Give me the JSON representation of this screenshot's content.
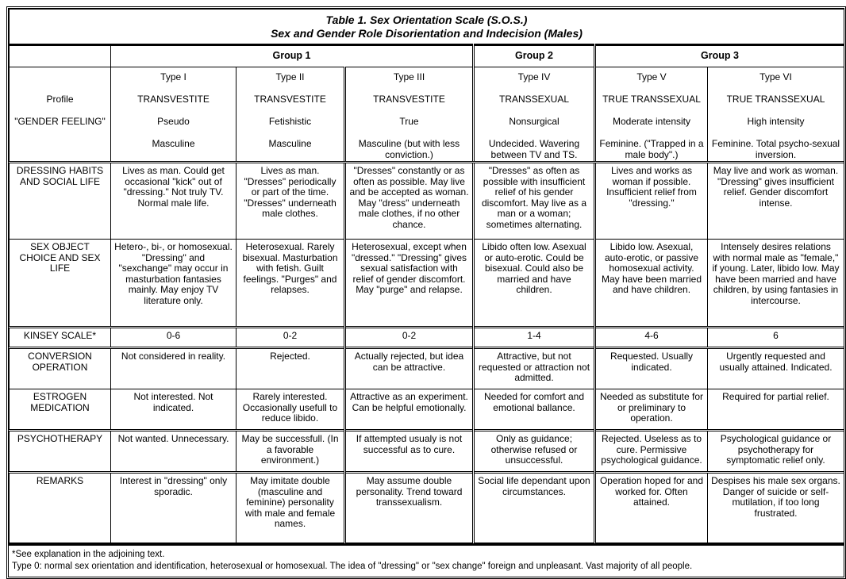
{
  "title": "Table 1. Sex Orientation Scale (S.O.S.)",
  "subtitle": "Sex and Gender Role Disorientation and Indecision (Males)",
  "groups": [
    "Group 1",
    "Group 2",
    "Group 3"
  ],
  "header_labels": [
    "Profile",
    "\"GENDER FEELING\""
  ],
  "types": [
    {
      "type": "Type I",
      "profile": "TRANSVESTITE",
      "subtype": "Pseudo",
      "gender_feeling": "Masculine"
    },
    {
      "type": "Type II",
      "profile": "TRANSVESTITE",
      "subtype": "Fetishistic",
      "gender_feeling": "Masculine"
    },
    {
      "type": "Type III",
      "profile": "TRANSVESTITE",
      "subtype": "True",
      "gender_feeling": "Masculine (but with less conviction.)"
    },
    {
      "type": "Type IV",
      "profile": "TRANSSEXUAL",
      "subtype": "Nonsurgical",
      "gender_feeling": "Undecided. Wavering between TV and TS."
    },
    {
      "type": "Type V",
      "profile": "TRUE TRANSSEXUAL",
      "subtype": "Moderate intensity",
      "gender_feeling": "Feminine. (\"Trapped in a male body\".)"
    },
    {
      "type": "Type VI",
      "profile": "TRUE TRANSSEXUAL",
      "subtype": "High intensity",
      "gender_feeling": "Feminine. Total psycho-sexual inversion."
    }
  ],
  "rows": [
    {
      "label": "DRESSING HABITS AND SOCIAL LIFE",
      "cells": [
        "Lives as man. Could get occasional \"kick\" out of \"dressing.\" Not truly TV. Normal male life.",
        "Lives as man. \"Dresses\" periodically or part of the time. \"Dresses\" underneath male clothes.",
        "\"Dresses\" constantly or as often as possible. May live and be accepted as woman. May \"dress\" underneath male clothes, if no other chance.",
        "\"Dresses\" as often as possible with insufficient relief of his gender discomfort. May live as a man or a woman; sometimes alternating.",
        "Lives and works as woman if possible. Insufficient relief from \"dressing.\"",
        "May live and work as woman. \"Dressing\" gives insufficient relief. Gender discomfort intense."
      ]
    },
    {
      "label": "SEX OBJECT CHOICE AND SEX LIFE",
      "cells": [
        "Hetero-, bi-, or homosexual. \"Dressing\" and \"sexchange\" may occur in masturbation fantasies mainly. May enjoy TV literature only.",
        "Heterosexual. Rarely bisexual. Masturbation with fetish. Guilt feelings. \"Purges\" and relapses.",
        "Heterosexual, except when \"dressed.\" \"Dressing\" gives sexual satisfaction with relief of gender discomfort. May \"purge\" and relapse.",
        "Libido often low. Asexual or auto-erotic. Could be bisexual. Could also be married and have children.",
        "Libido low. Asexual, auto-erotic, or passive homosexual activity. May have been married and have children.",
        "Intensely desires relations with normal male as \"female,\" if young. Later, libido low. May have been married and have children, by using fantasies in intercourse."
      ]
    },
    {
      "label": "KINSEY SCALE*",
      "cells": [
        "0-6",
        "0-2",
        "0-2",
        "1-4",
        "4-6",
        "6"
      ]
    },
    {
      "label": "CONVERSION OPERATION",
      "cells": [
        "Not considered in reality.",
        "Rejected.",
        "Actually rejected, but idea can be attractive.",
        "Attractive, but not requested or attraction not admitted.",
        "Requested. Usually indicated.",
        "Urgently requested and usually attained. Indicated."
      ]
    },
    {
      "label": "ESTROGEN MEDICATION",
      "cells": [
        "Not interested. Not indicated.",
        "Rarely interested. Occasionally usefull to reduce libido.",
        "Attractive as an experiment. Can be helpful emotionally.",
        "Needed for comfort and emotional ballance.",
        "Needed as substitute for or preliminary to operation.",
        "Required for partial relief."
      ]
    },
    {
      "label": "PSYCHOTHERAPY",
      "cells": [
        "Not wanted. Unnecessary.",
        "May be successfull. (In a favorable environment.)",
        "If attempted usualy is not successful as to cure.",
        "Only as guidance; otherwise refused or unsuccessful.",
        "Rejected. Useless as to cure. Permissive psychological guidance.",
        "Psychological guidance or psychotherapy for symptomatic relief only."
      ]
    },
    {
      "label": "REMARKS",
      "cells": [
        "Interest in \"dressing\" only sporadic.",
        "May imitate double (masculine and feminine) personality with male and female names.",
        "May assume double personality. Trend toward transsexualism.",
        "Social life dependant upon circumstances.",
        "Operation hoped for and worked for. Often attained.",
        "Despises his male sex organs. Danger of suicide or self-mutilation, if too long frustrated."
      ]
    }
  ],
  "footnotes": [
    "*See explanation in the adjoining text.",
    "Type 0: normal sex orientation and identification, heterosexual or homosexual. The idea of \"dressing\" or \"sex change\" foreign and unpleasant. Vast majority of all people."
  ]
}
